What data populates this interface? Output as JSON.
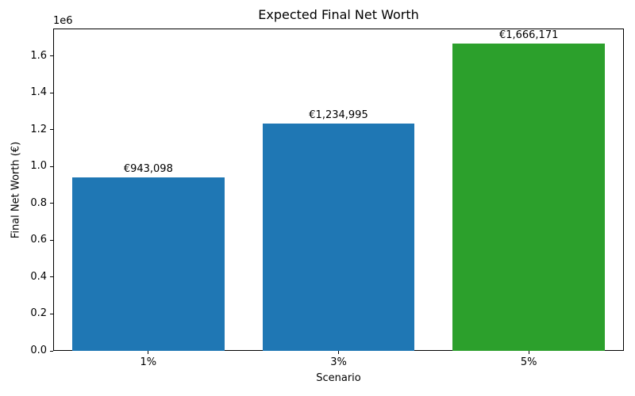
{
  "chart_data": {
    "type": "bar",
    "title": "Expected Final Net Worth",
    "xlabel": "Scenario",
    "ylabel": "Final Net Worth (€)",
    "offset_label": "1e6",
    "categories": [
      "1%",
      "3%",
      "5%"
    ],
    "values": [
      943098,
      1234995,
      1666171
    ],
    "bar_labels": [
      "€943,098",
      "€1,234,995",
      "€1,666,171"
    ],
    "bar_colors": [
      "#1f77b4",
      "#1f77b4",
      "#2ca02c"
    ],
    "ylim": [
      0,
      1750000
    ],
    "yticks": [
      {
        "value": 0,
        "label": "0.0"
      },
      {
        "value": 200000,
        "label": "0.2"
      },
      {
        "value": 400000,
        "label": "0.4"
      },
      {
        "value": 600000,
        "label": "0.6"
      },
      {
        "value": 800000,
        "label": "0.8"
      },
      {
        "value": 1000000,
        "label": "1.0"
      },
      {
        "value": 1200000,
        "label": "1.2"
      },
      {
        "value": 1400000,
        "label": "1.4"
      },
      {
        "value": 1600000,
        "label": "1.6"
      }
    ],
    "grid": false,
    "legend": null,
    "bar_width_fraction": 0.8,
    "spine_color": "#000000",
    "text_color": "#000000",
    "background_color": "#ffffff"
  }
}
